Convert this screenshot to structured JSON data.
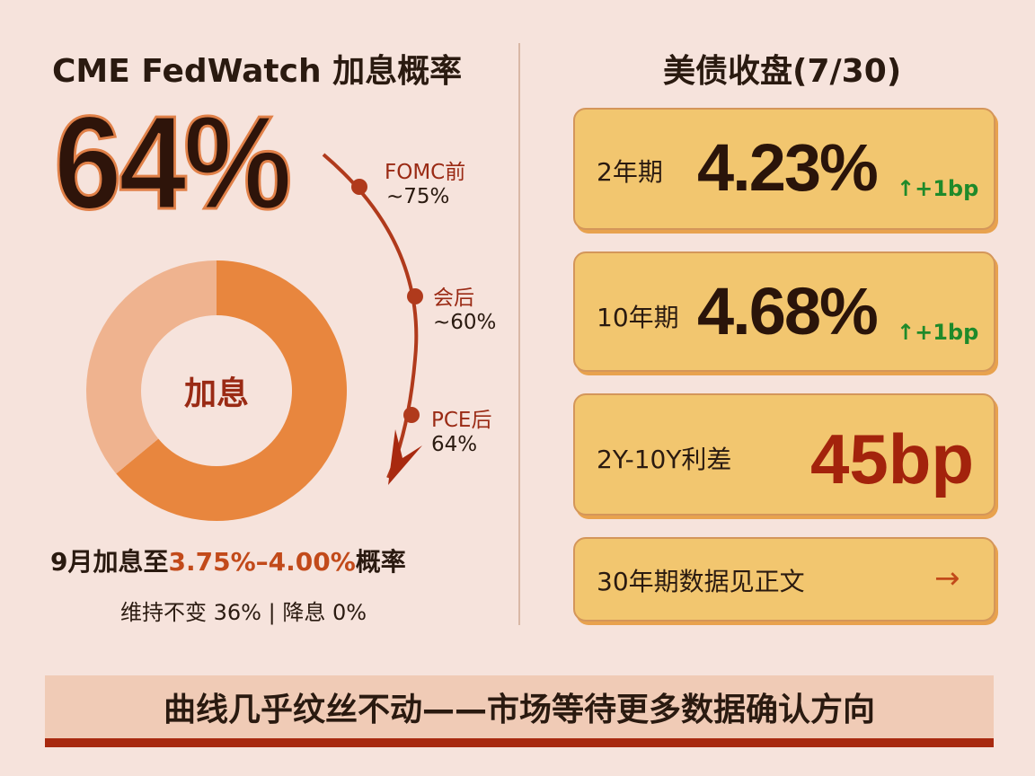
{
  "left_panel": {
    "title": "CME FedWatch 加息概率",
    "headline_pct": "64%",
    "donut_label": "加息",
    "timeline": [
      {
        "label": "FOMC前",
        "value": "~75%"
      },
      {
        "label": "会后",
        "value": "~60%"
      },
      {
        "label": "PCE后",
        "value": "64%"
      }
    ],
    "summary_prefix": "9月加息至",
    "summary_highlight": "3.75%–4.00%",
    "summary_suffix": "概率",
    "summary_detail": "维持不变 36% | 降息 0%"
  },
  "right_panel": {
    "title": "美债收盘(7/30)",
    "cards": [
      {
        "label": "2年期",
        "value": "4.23%",
        "change": "+1bp",
        "change_icon": "up-arrow-icon"
      },
      {
        "label": "10年期",
        "value": "4.68%",
        "change": "+1bp",
        "change_icon": "up-arrow-icon"
      },
      {
        "label": "2Y-10Y利差",
        "value": "45bp"
      },
      {
        "label": "30年期数据见正文",
        "icon": "right-arrow-icon"
      }
    ]
  },
  "banner": {
    "text": "曲线几乎纹丝不动——市场等待更多数据确认方向"
  },
  "colors": {
    "background": "#f6e3dc",
    "donut_main": "#e8863e",
    "donut_rest": "#efb38f",
    "accent_red": "#a8290f",
    "card_bg": "#f2c66f",
    "up_green": "#1f8a2a"
  },
  "chart_data": [
    {
      "type": "pie",
      "variant": "donut",
      "title": "",
      "center_label": "加息",
      "slices": [
        {
          "name": "加息",
          "value": 64
        },
        {
          "name": "维持不变",
          "value": 36
        },
        {
          "name": "降息",
          "value": 0
        }
      ]
    },
    {
      "type": "line",
      "title": "",
      "categories": [
        "FOMC前",
        "会后",
        "PCE后"
      ],
      "series": [
        {
          "values": [
            75,
            60,
            64
          ]
        }
      ]
    }
  ]
}
